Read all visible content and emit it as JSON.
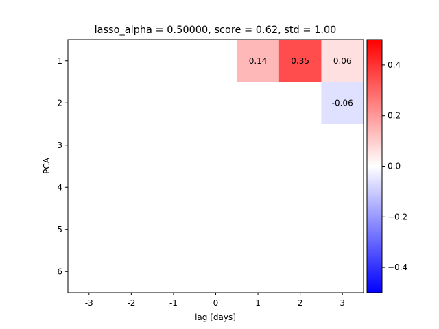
{
  "chart_data": {
    "type": "heatmap",
    "title": "lasso_alpha = 0.50000, score = 0.62, std = 1.00",
    "xlabel": "lag [days]",
    "ylabel": "PCA",
    "x_categories": [
      "-3",
      "-2",
      "-1",
      "0",
      "1",
      "2",
      "3"
    ],
    "y_categories": [
      "1",
      "2",
      "3",
      "4",
      "5",
      "6"
    ],
    "values": [
      [
        0,
        0,
        0,
        0,
        0.14,
        0.35,
        0.06
      ],
      [
        0,
        0,
        0,
        0,
        0,
        0,
        -0.06
      ],
      [
        0,
        0,
        0,
        0,
        0,
        0,
        0
      ],
      [
        0,
        0,
        0,
        0,
        0,
        0,
        0
      ],
      [
        0,
        0,
        0,
        0,
        0,
        0,
        0
      ],
      [
        0,
        0,
        0,
        0,
        0,
        0,
        0
      ]
    ],
    "cell_labels": [
      [
        "",
        "",
        "",
        "",
        "0.14",
        "0.35",
        "0.06"
      ],
      [
        "",
        "",
        "",
        "",
        "",
        "",
        "-0.06"
      ],
      [
        "",
        "",
        "",
        "",
        "",
        "",
        ""
      ],
      [
        "",
        "",
        "",
        "",
        "",
        "",
        ""
      ],
      [
        "",
        "",
        "",
        "",
        "",
        "",
        ""
      ],
      [
        "",
        "",
        "",
        "",
        "",
        "",
        ""
      ]
    ],
    "colormap": "bwr",
    "colorbar": {
      "vmin": -0.5,
      "vmax": 0.5,
      "ticks": [
        -0.4,
        -0.2,
        0.0,
        0.2,
        0.4
      ],
      "tick_labels": [
        "−0.4",
        "−0.2",
        "0.0",
        "0.2",
        "0.4"
      ]
    },
    "grid": false
  }
}
